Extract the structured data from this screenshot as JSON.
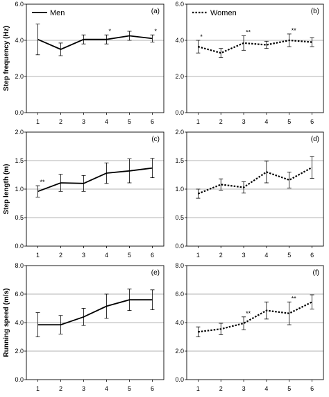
{
  "chart_data": [
    {
      "type": "line",
      "panel": "(a)",
      "ylabel": "Step frequency (Hz)",
      "ylim": [
        0,
        6
      ],
      "yticks": [
        "0.0",
        "2.0",
        "4.0",
        "6.0"
      ],
      "categories": [
        "1",
        "2",
        "3",
        "4",
        "5",
        "6"
      ],
      "series": [
        {
          "name": "Men",
          "values": [
            4.05,
            3.5,
            4.05,
            4.05,
            4.25,
            4.1
          ],
          "error": [
            0.85,
            0.35,
            0.25,
            0.25,
            0.25,
            0.2
          ],
          "style": "solid"
        }
      ],
      "annotations": [
        "",
        "",
        "",
        "*",
        "",
        "*"
      ],
      "legend": "top-left",
      "grid": true
    },
    {
      "type": "line",
      "panel": "(b)",
      "ylim": [
        0,
        6
      ],
      "yticks": [
        "0.0",
        "2.0",
        "4.0",
        "6.0"
      ],
      "categories": [
        "1",
        "2",
        "3",
        "4",
        "5",
        "6"
      ],
      "series": [
        {
          "name": "Women",
          "values": [
            3.65,
            3.3,
            3.85,
            3.75,
            4.0,
            3.9
          ],
          "error": [
            0.35,
            0.25,
            0.4,
            0.2,
            0.35,
            0.25
          ],
          "style": "dotted"
        }
      ],
      "annotations": [
        "*",
        "",
        "**",
        "",
        "**",
        ""
      ],
      "legend": "top-left",
      "grid": true
    },
    {
      "type": "line",
      "panel": "(c)",
      "ylabel": "Step length (m)",
      "ylim": [
        0,
        2
      ],
      "yticks": [
        "0.0",
        "0.5",
        "1.0",
        "1.5",
        "2.0"
      ],
      "categories": [
        "1",
        "2",
        "3",
        "4",
        "5",
        "6"
      ],
      "series": [
        {
          "name": "Men",
          "values": [
            0.96,
            1.11,
            1.1,
            1.28,
            1.32,
            1.37
          ],
          "error": [
            0.1,
            0.15,
            0.14,
            0.18,
            0.21,
            0.17
          ],
          "style": "solid"
        }
      ],
      "annotations": [
        "**",
        "",
        "",
        "",
        "",
        ""
      ],
      "grid": true
    },
    {
      "type": "line",
      "panel": "(d)",
      "ylim": [
        0,
        2
      ],
      "yticks": [
        "0.0",
        "0.5",
        "1.0",
        "1.5",
        "2.0"
      ],
      "categories": [
        "1",
        "2",
        "3",
        "4",
        "5",
        "6"
      ],
      "series": [
        {
          "name": "Women",
          "values": [
            0.92,
            1.08,
            1.03,
            1.3,
            1.16,
            1.38
          ],
          "error": [
            0.08,
            0.1,
            0.1,
            0.19,
            0.14,
            0.19
          ],
          "style": "dotted"
        }
      ],
      "annotations": [
        "",
        "",
        "",
        "",
        "",
        ""
      ],
      "grid": true
    },
    {
      "type": "line",
      "panel": "(e)",
      "ylabel": "Running speed (m/s)",
      "ylim": [
        0,
        8
      ],
      "yticks": [
        "0.0",
        "2.0",
        "4.0",
        "6.0",
        "8.0"
      ],
      "categories": [
        "1",
        "2",
        "3",
        "4",
        "5",
        "6"
      ],
      "series": [
        {
          "name": "Men",
          "values": [
            3.85,
            3.85,
            4.4,
            5.15,
            5.6,
            5.6
          ],
          "error": [
            0.85,
            0.65,
            0.6,
            0.85,
            0.75,
            0.7
          ],
          "style": "solid"
        }
      ],
      "annotations": [
        "",
        "",
        "",
        "",
        "",
        ""
      ],
      "grid": true
    },
    {
      "type": "line",
      "panel": "(f)",
      "ylim": [
        0,
        8
      ],
      "yticks": [
        "0.0",
        "2.0",
        "4.0",
        "6.0",
        "8.0"
      ],
      "categories": [
        "1",
        "2",
        "3",
        "4",
        "5",
        "6"
      ],
      "series": [
        {
          "name": "Women",
          "values": [
            3.35,
            3.55,
            3.95,
            4.85,
            4.65,
            5.45
          ],
          "error": [
            0.35,
            0.4,
            0.45,
            0.6,
            0.8,
            0.5
          ],
          "style": "dotted"
        }
      ],
      "annotations": [
        "",
        "",
        "**",
        "",
        "**",
        ""
      ],
      "grid": true
    }
  ]
}
